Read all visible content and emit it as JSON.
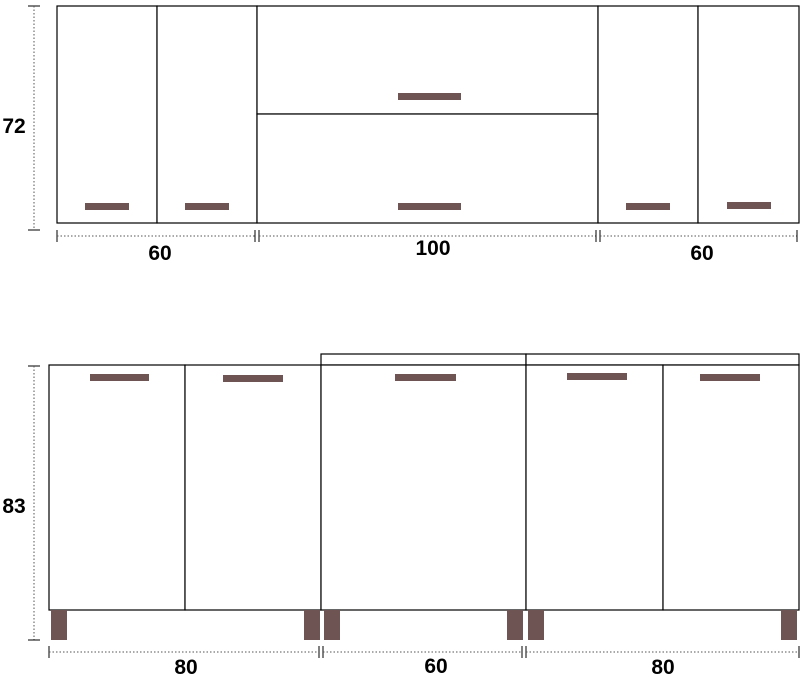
{
  "colors": {
    "handle": "#6e5452",
    "leg": "#6e5452",
    "outline": "#000000",
    "background": "#ffffff"
  },
  "upper": {
    "height_label": "72",
    "widths": [
      "60",
      "100",
      "60"
    ]
  },
  "lower": {
    "height_label": "83",
    "widths": [
      "80",
      "60",
      "80"
    ]
  }
}
